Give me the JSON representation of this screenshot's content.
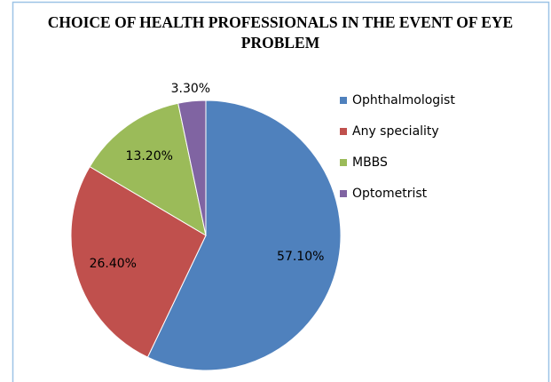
{
  "chart_data": {
    "type": "pie",
    "title": "CHOICE OF HEALTH PROFESSIONALS IN THE EVENT OF EYE PROBLEM",
    "categories": [
      "Ophthalmologist",
      "Any speciality",
      "MBBS",
      "Optometrist"
    ],
    "values": [
      57.1,
      26.4,
      13.2,
      3.3
    ],
    "value_labels": [
      "57.10%",
      "26.40%",
      "13.20%",
      "3.30%"
    ],
    "colors": [
      "#4f81bd",
      "#c0504d",
      "#9bbb59",
      "#8064a2"
    ],
    "legend": "right"
  }
}
